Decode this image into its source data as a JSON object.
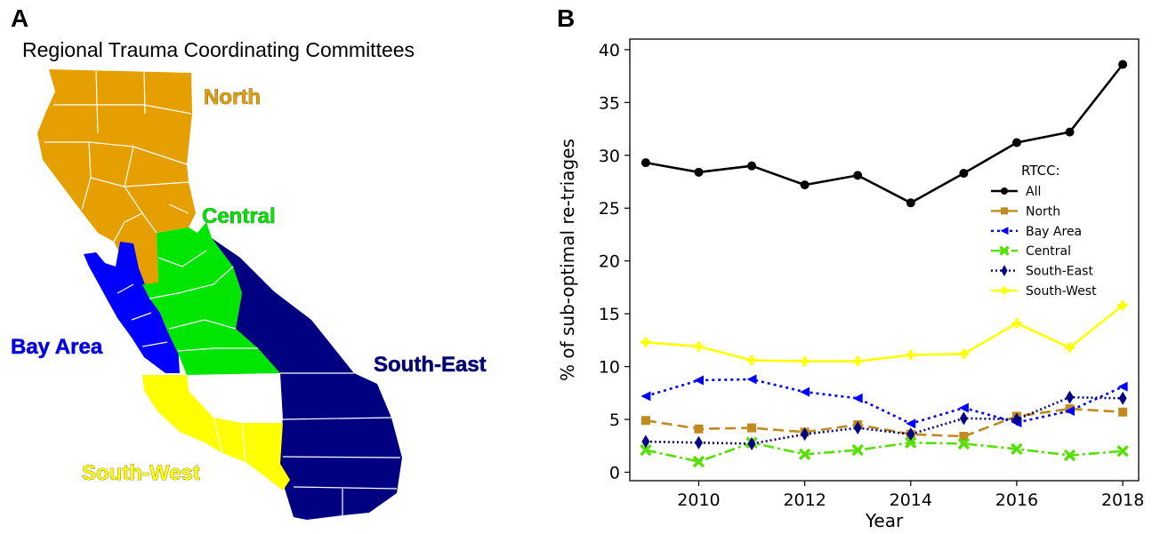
{
  "panel_a": {
    "letter": "A",
    "title": "Regional Trauma Coordinating Committees",
    "regions": [
      {
        "name": "North",
        "color": "#E69F00"
      },
      {
        "name": "Central",
        "color": "#00E600"
      },
      {
        "name": "Bay Area",
        "color": "#0000FF"
      },
      {
        "name": "South-East",
        "color": "#000080"
      },
      {
        "name": "South-West",
        "color": "#FFFF00"
      }
    ]
  },
  "panel_b": {
    "letter": "B"
  },
  "chart_data": {
    "type": "line",
    "xlabel": "Year",
    "ylabel": "% of sub-optimal re-triages",
    "xlim": [
      2008.7,
      2018.3
    ],
    "ylim": [
      -0.8,
      41
    ],
    "xticks": [
      2010,
      2012,
      2014,
      2016,
      2018
    ],
    "yticks": [
      0,
      5,
      10,
      15,
      20,
      25,
      30,
      35,
      40
    ],
    "legend_title": "RTCC:",
    "legend_position": "center-right",
    "grid": false,
    "x": [
      2009,
      2010,
      2011,
      2012,
      2013,
      2014,
      2015,
      2016,
      2017,
      2018
    ],
    "series": [
      {
        "name": "All",
        "color": "#000000",
        "marker": "circle",
        "dash": "",
        "values": [
          29.3,
          28.4,
          29.0,
          27.2,
          28.1,
          25.5,
          28.3,
          31.2,
          32.2,
          38.6
        ]
      },
      {
        "name": "North",
        "color": "#C08A1E",
        "marker": "square",
        "dash": "12,6",
        "values": [
          4.9,
          4.1,
          4.2,
          3.8,
          4.5,
          3.6,
          3.4,
          5.3,
          6.0,
          5.7
        ]
      },
      {
        "name": "Bay Area",
        "color": "#0000FF",
        "marker": "triangle-left",
        "dash": "3,4",
        "values": [
          7.2,
          8.7,
          8.8,
          7.6,
          7.0,
          4.6,
          6.1,
          4.7,
          5.8,
          8.1
        ]
      },
      {
        "name": "Central",
        "color": "#55E000",
        "marker": "x",
        "dash": "12,4,3,4",
        "values": [
          2.1,
          1.0,
          2.8,
          1.7,
          2.1,
          2.8,
          2.7,
          2.2,
          1.6,
          2.0
        ]
      },
      {
        "name": "South-East",
        "color": "#000080",
        "marker": "diamond",
        "dash": "2,3",
        "values": [
          2.9,
          2.8,
          2.7,
          3.6,
          4.2,
          3.6,
          5.1,
          5.0,
          7.1,
          7.0
        ]
      },
      {
        "name": "South-West",
        "color": "#FFFF00",
        "marker": "plus",
        "dash": "",
        "values": [
          12.3,
          11.9,
          10.6,
          10.5,
          10.5,
          11.1,
          11.2,
          14.1,
          11.8,
          15.8
        ]
      }
    ]
  }
}
